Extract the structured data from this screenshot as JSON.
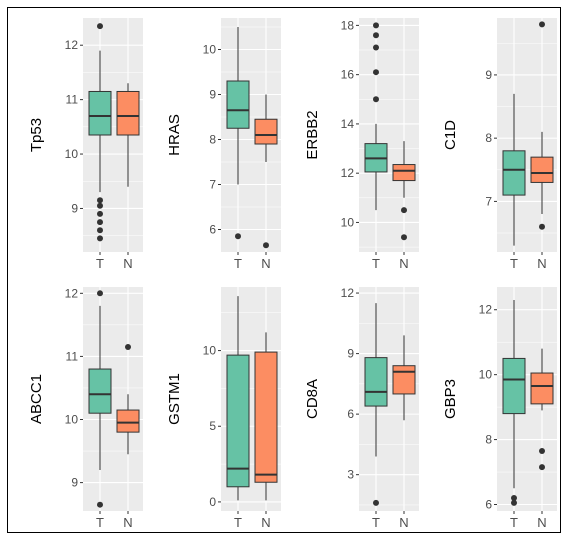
{
  "colors": {
    "tumor_fill": "#66C2A5",
    "normal_fill": "#FC8D62",
    "panel_bg": "#EBEBEB",
    "grid_major": "#FFFFFF",
    "tick_text": "#4D4D4D",
    "outline": "#333333"
  },
  "chart_data": [
    {
      "type": "boxplot",
      "ylabel": "Tp53",
      "categories": [
        "T",
        "N"
      ],
      "yticks": [
        9,
        10,
        11,
        12
      ],
      "ylim": [
        8.2,
        12.5
      ],
      "boxes": [
        {
          "group": "T",
          "min": 9.3,
          "q1": 10.35,
          "median": 10.7,
          "q3": 11.15,
          "max": 11.9,
          "outliers": [
            12.35,
            9.15,
            9.05,
            8.9,
            8.75,
            8.6,
            8.45
          ]
        },
        {
          "group": "N",
          "min": 9.4,
          "q1": 10.35,
          "median": 10.7,
          "q3": 11.15,
          "max": 11.3,
          "outliers": []
        }
      ]
    },
    {
      "type": "boxplot",
      "ylabel": "HRAS",
      "categories": [
        "T",
        "N"
      ],
      "yticks": [
        6,
        7,
        8,
        9,
        10
      ],
      "ylim": [
        5.5,
        10.7
      ],
      "boxes": [
        {
          "group": "T",
          "min": 7.0,
          "q1": 8.25,
          "median": 8.65,
          "q3": 9.3,
          "max": 10.5,
          "outliers": [
            5.85
          ]
        },
        {
          "group": "N",
          "min": 7.5,
          "q1": 7.9,
          "median": 8.1,
          "q3": 8.45,
          "max": 9.0,
          "outliers": [
            5.65
          ]
        }
      ]
    },
    {
      "type": "boxplot",
      "ylabel": "ERBB2",
      "categories": [
        "T",
        "N"
      ],
      "yticks": [
        10,
        12,
        14,
        16,
        18
      ],
      "ylim": [
        8.8,
        18.3
      ],
      "boxes": [
        {
          "group": "T",
          "min": 10.5,
          "q1": 12.05,
          "median": 12.6,
          "q3": 13.2,
          "max": 14.0,
          "outliers": [
            18.0,
            17.6,
            17.1,
            16.1,
            15.0
          ]
        },
        {
          "group": "N",
          "min": 11.0,
          "q1": 11.7,
          "median": 12.1,
          "q3": 12.35,
          "max": 13.3,
          "outliers": [
            10.5,
            9.4
          ]
        }
      ]
    },
    {
      "type": "boxplot",
      "ylabel": "C1D",
      "categories": [
        "T",
        "N"
      ],
      "yticks": [
        7,
        8,
        9
      ],
      "ylim": [
        6.2,
        9.9
      ],
      "boxes": [
        {
          "group": "T",
          "min": 6.3,
          "q1": 7.1,
          "median": 7.5,
          "q3": 7.8,
          "max": 8.7,
          "outliers": []
        },
        {
          "group": "N",
          "min": 6.8,
          "q1": 7.3,
          "median": 7.45,
          "q3": 7.7,
          "max": 8.1,
          "outliers": [
            9.8,
            6.6
          ]
        }
      ]
    },
    {
      "type": "boxplot",
      "ylabel": "ABCC1",
      "categories": [
        "T",
        "N"
      ],
      "yticks": [
        9,
        10,
        11,
        12
      ],
      "ylim": [
        8.55,
        12.1
      ],
      "boxes": [
        {
          "group": "T",
          "min": 9.2,
          "q1": 10.1,
          "median": 10.4,
          "q3": 10.8,
          "max": 11.8,
          "outliers": [
            12.0,
            8.65
          ]
        },
        {
          "group": "N",
          "min": 9.45,
          "q1": 9.8,
          "median": 9.95,
          "q3": 10.15,
          "max": 10.4,
          "outliers": [
            11.15
          ]
        }
      ]
    },
    {
      "type": "boxplot",
      "ylabel": "GSTM1",
      "categories": [
        "T",
        "N"
      ],
      "yticks": [
        0,
        5,
        10
      ],
      "ylim": [
        -0.6,
        14.2
      ],
      "boxes": [
        {
          "group": "T",
          "min": 0.1,
          "q1": 1.0,
          "median": 2.2,
          "q3": 9.7,
          "max": 13.6,
          "outliers": []
        },
        {
          "group": "N",
          "min": 0.1,
          "q1": 1.3,
          "median": 1.8,
          "q3": 9.9,
          "max": 11.2,
          "outliers": []
        }
      ]
    },
    {
      "type": "boxplot",
      "ylabel": "CD8A",
      "categories": [
        "T",
        "N"
      ],
      "yticks": [
        3,
        6,
        9,
        12
      ],
      "ylim": [
        1.2,
        12.3
      ],
      "boxes": [
        {
          "group": "T",
          "min": 3.9,
          "q1": 6.4,
          "median": 7.1,
          "q3": 8.8,
          "max": 11.5,
          "outliers": [
            1.6
          ]
        },
        {
          "group": "N",
          "min": 5.7,
          "q1": 7.0,
          "median": 8.1,
          "q3": 8.4,
          "max": 9.9,
          "outliers": []
        }
      ]
    },
    {
      "type": "boxplot",
      "ylabel": "GBP3",
      "categories": [
        "T",
        "N"
      ],
      "yticks": [
        6,
        8,
        10,
        12
      ],
      "ylim": [
        5.8,
        12.7
      ],
      "boxes": [
        {
          "group": "T",
          "min": 6.5,
          "q1": 8.8,
          "median": 9.85,
          "q3": 10.5,
          "max": 12.3,
          "outliers": [
            6.2,
            6.05
          ]
        },
        {
          "group": "N",
          "min": 8.9,
          "q1": 9.1,
          "median": 9.65,
          "q3": 10.05,
          "max": 10.8,
          "outliers": [
            7.65,
            7.15
          ]
        }
      ]
    }
  ]
}
